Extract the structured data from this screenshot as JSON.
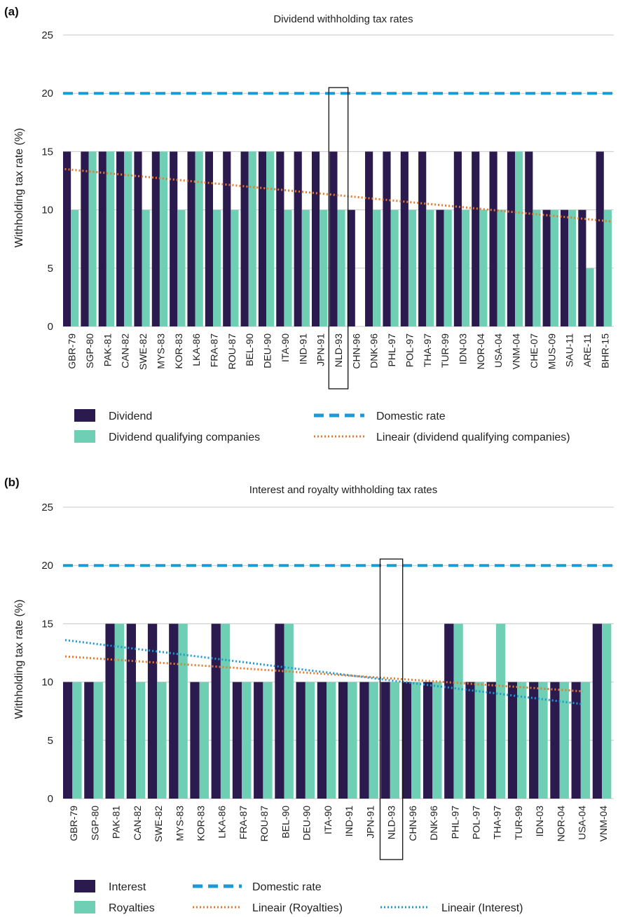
{
  "chart_data": [
    {
      "panel": "(a)",
      "type": "bar",
      "title": "Dividend withholding tax rates",
      "ylabel": "Withholding tax rate (%)",
      "ylim": [
        0,
        25
      ],
      "yticks": [
        "0",
        "5",
        "10",
        "15",
        "20",
        "25"
      ],
      "grid": true,
      "categories": [
        "GBR-79",
        "SGP-80",
        "PAK-81",
        "CAN-82",
        "SWE-82",
        "MYS-83",
        "KOR-83",
        "LKA-86",
        "FRA-87",
        "ROU-87",
        "BEL-90",
        "DEU-90",
        "ITA-90",
        "IND-91",
        "JPN-91",
        "NLD-93",
        "CHN-96",
        "DNK-96",
        "PHL-97",
        "POL-97",
        "THA-97",
        "TUR-99",
        "IDN-03",
        "NOR-04",
        "USA-04",
        "VNM-04",
        "CHE-07",
        "MUS-09",
        "SAU-11",
        "ARE-11",
        "BHR-15"
      ],
      "highlight": "NLD-93",
      "series": [
        {
          "name": "Dividend",
          "color": "#2b1a4e",
          "values": [
            15,
            15,
            15,
            15,
            15,
            15,
            15,
            15,
            15,
            15,
            15,
            15,
            15,
            15,
            15,
            15,
            10,
            15,
            15,
            15,
            15,
            10,
            15,
            15,
            15,
            15,
            15,
            10,
            10,
            10,
            15
          ]
        },
        {
          "name": "Dividend qualifying companies",
          "color": "#6fcfb4",
          "values": [
            10,
            15,
            15,
            15,
            10,
            15,
            10,
            15,
            10,
            10,
            15,
            15,
            10,
            10,
            10,
            10,
            0,
            10,
            10,
            10,
            10,
            10,
            10,
            10,
            10,
            15,
            10,
            10,
            10,
            5,
            10
          ]
        }
      ],
      "lines": [
        {
          "name": "Domestic rate",
          "color": "#1a9ad6",
          "style": "dashed",
          "values": [
            20,
            20
          ]
        },
        {
          "name": "Lineair (dividend qualifying companies)",
          "color": "#e8792a",
          "style": "dotted",
          "values": [
            13.5,
            9.0
          ]
        }
      ],
      "legend": [
        "Dividend",
        "Dividend qualifying companies",
        "Domestic rate",
        "Lineair (dividend qualifying companies)"
      ]
    },
    {
      "panel": "(b)",
      "type": "bar",
      "title": "Interest and royalty withholding tax rates",
      "ylabel": "Withholding tax rate (%)",
      "ylim": [
        0,
        25
      ],
      "yticks": [
        "0",
        "5",
        "10",
        "15",
        "20",
        "25"
      ],
      "grid": true,
      "categories": [
        "GBR-79",
        "SGP-80",
        "PAK-81",
        "CAN-82",
        "SWE-82",
        "MYS-83",
        "KOR-83",
        "LKA-86",
        "FRA-87",
        "ROU-87",
        "BEL-90",
        "DEU-90",
        "ITA-90",
        "IND-91",
        "JPN-91",
        "NLD-93",
        "CHN-96",
        "DNK-96",
        "PHL-97",
        "POL-97",
        "THA-97",
        "TUR-99",
        "IDN-03",
        "NOR-04",
        "USA-04",
        "VNM-04"
      ],
      "highlight": "NLD-93",
      "series": [
        {
          "name": "Interest",
          "color": "#2b1a4e",
          "values": [
            10,
            10,
            15,
            15,
            15,
            15,
            10,
            15,
            10,
            10,
            15,
            10,
            10,
            10,
            10,
            10,
            10,
            10,
            15,
            10,
            10,
            10,
            10,
            10,
            10,
            15
          ]
        },
        {
          "name": "Royalties",
          "color": "#6fcfb4",
          "values": [
            10,
            10,
            15,
            10,
            10,
            15,
            10,
            15,
            10,
            10,
            15,
            10,
            10,
            10,
            10,
            10,
            10,
            10,
            15,
            10,
            15,
            10,
            10,
            10,
            10,
            15
          ]
        }
      ],
      "lines": [
        {
          "name": "Domestic rate",
          "color": "#1a9ad6",
          "style": "dashed",
          "values": [
            20,
            20
          ]
        },
        {
          "name": "Lineair (Royalties)",
          "color": "#e8792a",
          "style": "dotted",
          "values": [
            12.2,
            9.2
          ]
        },
        {
          "name": "Lineair (Interest)",
          "color": "#1a9ad6",
          "style": "dotted",
          "values": [
            13.6,
            8.1
          ]
        }
      ],
      "legend": [
        "Interest",
        "Royalties",
        "Domestic rate",
        "Lineair (Royalties)",
        "Lineair (Interest)"
      ]
    }
  ]
}
